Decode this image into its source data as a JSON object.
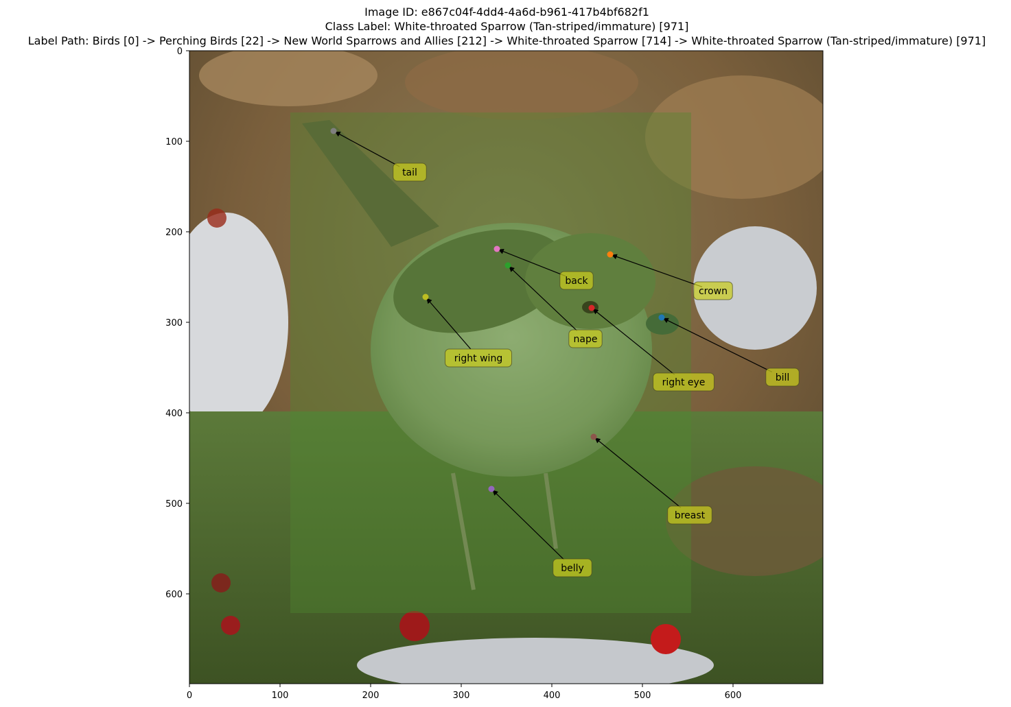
{
  "title": {
    "image_id": "Image ID: e867c04f-4dd4-4a6d-b961-417b4bf682f1",
    "class_label": "Class Label: White-throated Sparrow (Tan-striped/immature)  [971]",
    "label_path": "Label Path: Birds [0] -> Perching Birds [22] -> New World Sparrows and Allies [212] -> White-throated Sparrow [714] -> White-throated Sparrow (Tan-striped/immature) [971]"
  },
  "axes": {
    "x_ticks": [
      "0",
      "100",
      "200",
      "300",
      "400",
      "500",
      "600"
    ],
    "y_ticks": [
      "0",
      "100",
      "200",
      "300",
      "400",
      "500",
      "600"
    ]
  },
  "photo": {
    "subject": "White-throated sparrow on grass and snow with red berries",
    "colors": {
      "bbox_overlay": "#4f8a2f",
      "label_box": "#c9cc1e"
    }
  },
  "parts": [
    {
      "name": "tail",
      "color": "#7f7f7f"
    },
    {
      "name": "back",
      "color": "#e377c2"
    },
    {
      "name": "crown",
      "color": "#ff7f0e"
    },
    {
      "name": "nape",
      "color": "#2ca02c"
    },
    {
      "name": "right wing",
      "color": "#bcbd22"
    },
    {
      "name": "right eye",
      "color": "#d62728"
    },
    {
      "name": "bill",
      "color": "#1f77b4"
    },
    {
      "name": "breast",
      "color": "#8c564b"
    },
    {
      "name": "belly",
      "color": "#9467bd"
    }
  ]
}
